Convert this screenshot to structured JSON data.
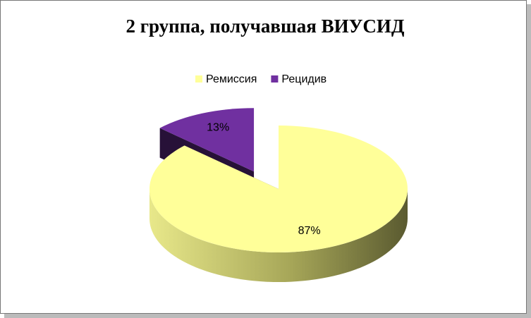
{
  "chart_data": {
    "type": "pie3d",
    "title": "2 группа, получавшая ВИУСИД",
    "categories": [
      "Ремиссия",
      "Рецидив"
    ],
    "values": [
      87,
      13
    ],
    "value_labels": [
      "87%",
      "13%"
    ],
    "colors": [
      "#ffff99",
      "#7030a0"
    ],
    "legend": "top",
    "exploded": [
      false,
      true
    ]
  }
}
